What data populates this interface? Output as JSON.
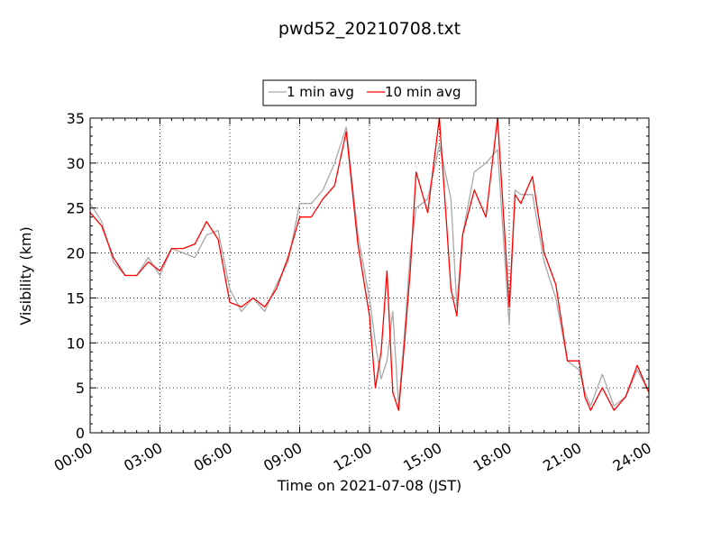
{
  "chart_data": {
    "type": "line",
    "title": "pwd52_20210708.txt",
    "xlabel": "Time on 2021-07-08 (JST)",
    "ylabel": "Visibility (km)",
    "xlim": [
      "00:00",
      "24:00"
    ],
    "ylim": [
      0,
      35
    ],
    "x_ticks": [
      "00:00",
      "03:00",
      "06:00",
      "09:00",
      "12:00",
      "15:00",
      "18:00",
      "21:00",
      "24:00"
    ],
    "y_ticks": [
      "0",
      "5",
      "10",
      "15",
      "20",
      "25",
      "30",
      "35"
    ],
    "grid": true,
    "legend_position": "top-center",
    "series": [
      {
        "name": "1 min avg",
        "color": "#a9a9a9",
        "x": [
          "00:00",
          "00:30",
          "01:00",
          "01:30",
          "02:00",
          "02:30",
          "03:00",
          "03:30",
          "04:00",
          "04:30",
          "05:00",
          "05:30",
          "06:00",
          "06:30",
          "07:00",
          "07:30",
          "08:00",
          "08:30",
          "09:00",
          "09:30",
          "10:00",
          "10:30",
          "11:00",
          "11:30",
          "12:00",
          "12:15",
          "12:30",
          "12:45",
          "13:00",
          "13:15",
          "13:30",
          "13:45",
          "14:00",
          "14:30",
          "15:00",
          "15:30",
          "15:45",
          "16:00",
          "16:30",
          "17:00",
          "17:30",
          "18:00",
          "18:15",
          "18:30",
          "19:00",
          "19:30",
          "20:00",
          "20:30",
          "21:00",
          "21:15",
          "21:30",
          "22:00",
          "22:30",
          "23:00",
          "23:30",
          "24:00"
        ],
        "values": [
          25.5,
          23.5,
          19.0,
          17.5,
          17.5,
          19.5,
          17.5,
          20.5,
          20.0,
          19.5,
          22.0,
          22.5,
          16.0,
          13.5,
          15.0,
          13.5,
          16.5,
          19.0,
          25.5,
          25.5,
          27.0,
          30.0,
          34.0,
          22.0,
          15.0,
          10.0,
          6.0,
          8.0,
          13.5,
          3.0,
          11.0,
          20.0,
          25.0,
          26.0,
          32.0,
          26.0,
          14.0,
          22.0,
          29.0,
          30.0,
          31.5,
          12.0,
          27.0,
          26.5,
          26.5,
          19.0,
          15.0,
          8.0,
          7.0,
          4.5,
          3.0,
          6.5,
          3.0,
          4.0,
          7.0,
          4.5
        ]
      },
      {
        "name": "10 min avg",
        "color": "#ff0000",
        "x": [
          "00:00",
          "00:30",
          "01:00",
          "01:30",
          "02:00",
          "02:30",
          "03:00",
          "03:30",
          "04:00",
          "04:30",
          "05:00",
          "05:30",
          "06:00",
          "06:30",
          "07:00",
          "07:30",
          "08:00",
          "08:30",
          "09:00",
          "09:30",
          "10:00",
          "10:30",
          "11:00",
          "11:30",
          "12:00",
          "12:15",
          "12:30",
          "12:45",
          "13:00",
          "13:15",
          "13:30",
          "13:45",
          "14:00",
          "14:30",
          "15:00",
          "15:30",
          "15:45",
          "16:00",
          "16:30",
          "17:00",
          "17:30",
          "18:00",
          "18:15",
          "18:30",
          "19:00",
          "19:30",
          "20:00",
          "20:30",
          "21:00",
          "21:15",
          "21:30",
          "22:00",
          "22:30",
          "23:00",
          "23:30",
          "24:00"
        ],
        "values": [
          24.5,
          23.0,
          19.5,
          17.5,
          17.5,
          19.0,
          18.0,
          20.5,
          20.5,
          21.0,
          23.5,
          21.5,
          14.5,
          14.0,
          15.0,
          14.0,
          16.0,
          19.5,
          24.0,
          24.0,
          26.0,
          27.5,
          33.5,
          21.0,
          13.0,
          5.0,
          9.0,
          18.0,
          4.5,
          2.5,
          10.0,
          18.0,
          29.0,
          24.5,
          35.0,
          16.0,
          13.0,
          22.0,
          27.0,
          24.0,
          35.0,
          14.0,
          26.5,
          25.5,
          28.5,
          20.0,
          16.5,
          8.0,
          8.0,
          4.0,
          2.5,
          5.0,
          2.5,
          4.0,
          7.5,
          4.5
        ]
      }
    ]
  }
}
